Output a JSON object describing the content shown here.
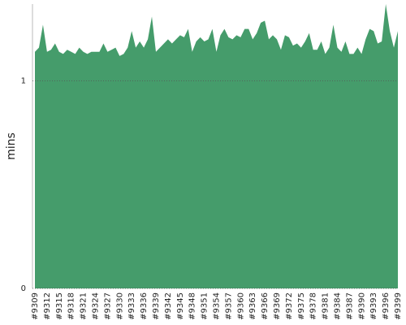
{
  "chart_data": {
    "type": "area",
    "ylabel": "mins",
    "color": "#459c6b",
    "categories": [
      "#9309",
      null,
      null,
      "#9312",
      null,
      null,
      "#9315",
      null,
      null,
      "#9318",
      null,
      null,
      "#9321",
      null,
      null,
      "#9324",
      null,
      null,
      "#9327",
      null,
      null,
      "#9330",
      null,
      null,
      "#9333",
      null,
      null,
      "#9336",
      null,
      null,
      "#9339",
      null,
      null,
      "#9342",
      null,
      null,
      "#9345",
      null,
      null,
      "#9348",
      null,
      null,
      "#9351",
      null,
      null,
      "#9354",
      null,
      null,
      "#9357",
      null,
      null,
      "#9360",
      null,
      null,
      "#9363",
      null,
      null,
      "#9366",
      null,
      null,
      "#9369",
      null,
      null,
      "#9372",
      null,
      null,
      "#9375",
      null,
      null,
      "#9378",
      null,
      null,
      "#9381",
      null,
      null,
      "#9384",
      null,
      null,
      "#9387",
      null,
      null,
      "#9390",
      null,
      null,
      "#9393",
      null,
      null,
      "#9396",
      null,
      null,
      "#9399"
    ],
    "values": [
      1.14,
      1.16,
      1.27,
      1.14,
      1.15,
      1.18,
      1.14,
      1.13,
      1.15,
      1.14,
      1.13,
      1.16,
      1.14,
      1.13,
      1.14,
      1.14,
      1.14,
      1.18,
      1.14,
      1.15,
      1.16,
      1.12,
      1.13,
      1.16,
      1.24,
      1.16,
      1.19,
      1.16,
      1.2,
      1.31,
      1.14,
      1.16,
      1.18,
      1.2,
      1.18,
      1.2,
      1.22,
      1.21,
      1.25,
      1.14,
      1.19,
      1.21,
      1.19,
      1.2,
      1.25,
      1.14,
      1.22,
      1.25,
      1.21,
      1.2,
      1.22,
      1.21,
      1.25,
      1.25,
      1.2,
      1.23,
      1.28,
      1.29,
      1.2,
      1.22,
      1.2,
      1.15,
      1.22,
      1.21,
      1.17,
      1.18,
      1.16,
      1.19,
      1.23,
      1.15,
      1.15,
      1.19,
      1.13,
      1.16,
      1.27,
      1.16,
      1.14,
      1.19,
      1.13,
      1.13,
      1.16,
      1.13,
      1.2,
      1.25,
      1.24,
      1.18,
      1.19,
      1.37,
      1.24,
      1.16,
      1.24
    ],
    "ylim": [
      0,
      1.37
    ],
    "yticks": [
      0,
      1
    ],
    "grid": true
  }
}
